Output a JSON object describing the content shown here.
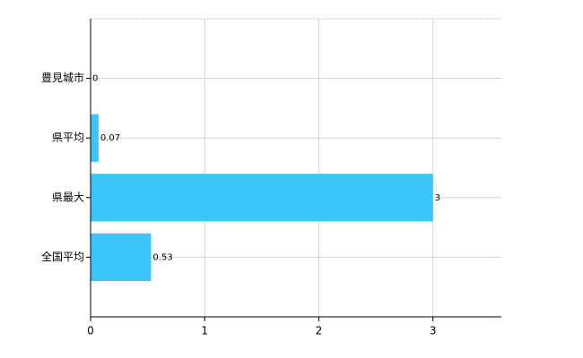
{
  "chart_data": {
    "type": "bar",
    "orientation": "horizontal",
    "categories": [
      "豊見城市",
      "県平均",
      "県最大",
      "全国平均"
    ],
    "values": [
      0,
      0.07,
      3,
      0.53
    ],
    "color": "#3cc5f8",
    "xlim": [
      0,
      3.6
    ],
    "xticks": [
      0,
      1,
      2,
      3
    ],
    "grid": true
  }
}
